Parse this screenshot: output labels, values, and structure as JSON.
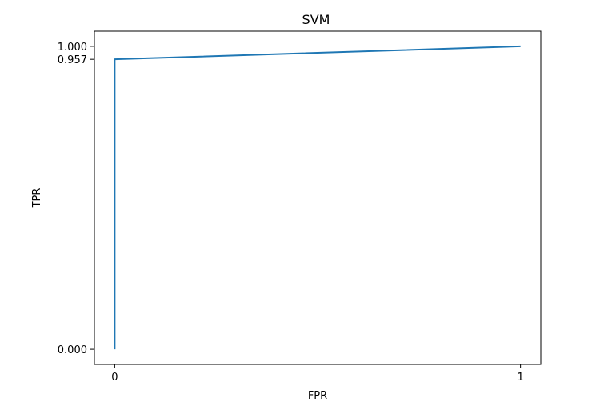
{
  "chart_data": {
    "type": "line",
    "title": "SVM",
    "xlabel": "FPR",
    "ylabel": "TPR",
    "x_ticks": [
      {
        "value": 0,
        "label": "0"
      },
      {
        "value": 1,
        "label": "1"
      }
    ],
    "y_ticks": [
      {
        "value": 0.0,
        "label": "0.000"
      },
      {
        "value": 0.957,
        "label": "0.957"
      },
      {
        "value": 1.0,
        "label": "1.000"
      }
    ],
    "xlim": [
      -0.05,
      1.05
    ],
    "ylim": [
      -0.05,
      1.05
    ],
    "grid": false,
    "series": [
      {
        "color": "#1f77b4",
        "x": [
          0,
          0,
          1
        ],
        "y": [
          0.0,
          0.957,
          1.0
        ]
      }
    ]
  }
}
